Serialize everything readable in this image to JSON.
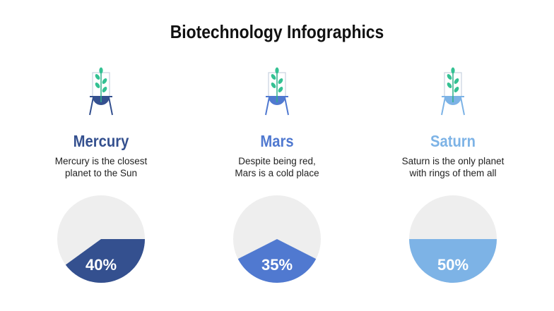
{
  "title": "Biotechnology Infographics",
  "items": [
    {
      "name": "Mercury",
      "desc1": "Mercury is the closest",
      "desc2": "planet to the Sun",
      "color": "#34508f"
    },
    {
      "name": "Mars",
      "desc1": "Despite being red,",
      "desc2": "Mars is a cold place",
      "color": "#5079d0"
    },
    {
      "name": "Saturn",
      "desc1": "Saturn is the only planet",
      "desc2": "with rings of them all",
      "color": "#7db3e6"
    }
  ],
  "chart_data": [
    {
      "type": "pie",
      "categories": [
        "Mercury"
      ],
      "values": [
        40
      ],
      "labels": [
        "40%"
      ],
      "background": "#eeeeee"
    },
    {
      "type": "pie",
      "categories": [
        "Mars"
      ],
      "values": [
        35
      ],
      "labels": [
        "35%"
      ],
      "background": "#eeeeee"
    },
    {
      "type": "pie",
      "categories": [
        "Saturn"
      ],
      "values": [
        50
      ],
      "labels": [
        "50%"
      ],
      "background": "#eeeeee"
    }
  ]
}
